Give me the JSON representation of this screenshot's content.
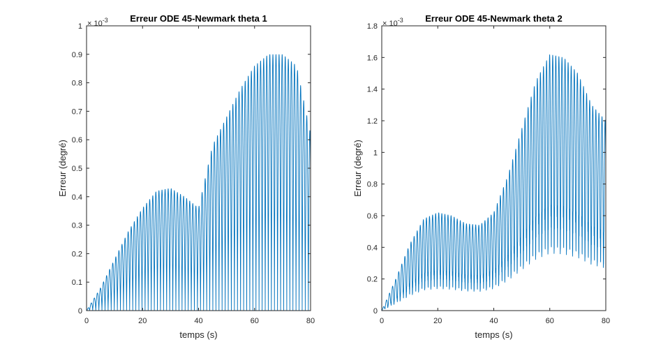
{
  "chart_data": [
    {
      "type": "line",
      "title": "Erreur ODE 45-Newmark theta 1",
      "xlabel": "temps (s)",
      "ylabel": "Erreur (degré)",
      "xlim": [
        0,
        80
      ],
      "ylim": [
        0,
        1
      ],
      "xticks": [
        "0",
        "20",
        "40",
        "60",
        "80"
      ],
      "yticks": [
        "0",
        "0.1",
        "0.2",
        "0.3",
        "0.4",
        "0.5",
        "0.6",
        "0.7",
        "0.8",
        "0.9",
        "1"
      ],
      "exponent_base": "× 10",
      "exponent_power": "-3",
      "line_color": "#0072BD",
      "grid": false,
      "series": [
        {
          "name": "",
          "envelope": {
            "t": [
              0,
              5,
              10,
              15,
              20,
              25,
              30,
              35,
              40,
              45,
              50,
              55,
              60,
              65,
              70,
              75,
              80
            ],
            "y": [
              0.0,
              0.08,
              0.18,
              0.28,
              0.36,
              0.42,
              0.43,
              0.4,
              0.36,
              0.58,
              0.68,
              0.78,
              0.86,
              0.9,
              0.9,
              0.86,
              0.62
            ]
          },
          "period_s": 2.2
        }
      ]
    },
    {
      "type": "line",
      "title": "Erreur ODE 45-Newmark theta 2",
      "xlabel": "temps (s)",
      "ylabel": "Erreur (degré)",
      "xlim": [
        0,
        80
      ],
      "ylim": [
        0,
        1.8
      ],
      "xticks": [
        "0",
        "20",
        "40",
        "60",
        "80"
      ],
      "yticks": [
        "0",
        "0.2",
        "0.4",
        "0.6",
        "0.8",
        "1",
        "1.2",
        "1.4",
        "1.6",
        "1.8"
      ],
      "exponent_base": "× 10",
      "exponent_power": "-3",
      "line_color": "#0072BD",
      "grid": false,
      "series": [
        {
          "name": "",
          "envelope": {
            "t": [
              0,
              5,
              10,
              15,
              20,
              25,
              30,
              35,
              40,
              45,
              50,
              55,
              60,
              65,
              70,
              75,
              80
            ],
            "y": [
              0.0,
              0.2,
              0.42,
              0.58,
              0.62,
              0.6,
              0.55,
              0.54,
              0.62,
              0.85,
              1.15,
              1.45,
              1.62,
              1.6,
              1.5,
              1.3,
              1.2
            ]
          },
          "period_s": 2.2
        }
      ]
    }
  ]
}
